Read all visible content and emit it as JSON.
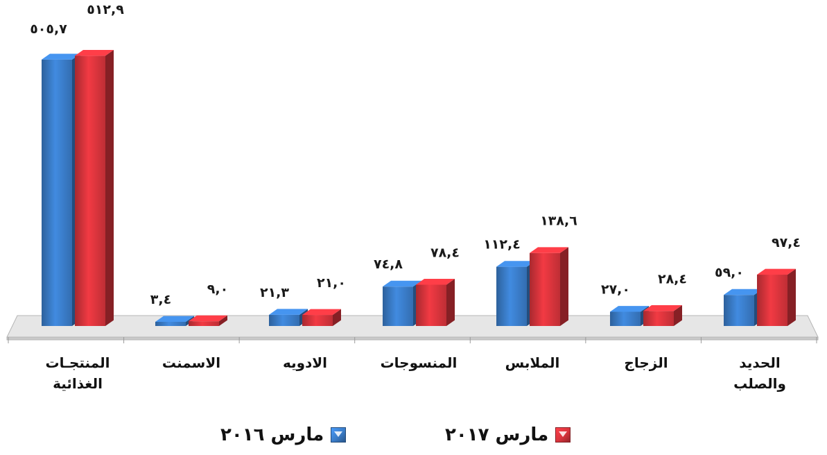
{
  "chart_data": {
    "type": "bar",
    "categories": [
      "المنتجـات الغذائية",
      "الاسمنت",
      "الادويه",
      "المنسوجات",
      "الملابس",
      "الزجاج",
      "الحديد والصلب"
    ],
    "category_lines": [
      [
        "المنتجـات",
        "الغذائية"
      ],
      [
        "الاسمنت"
      ],
      [
        "الادويه"
      ],
      [
        "المنسوجات"
      ],
      [
        "الملابس"
      ],
      [
        "الزجاج"
      ],
      [
        "الحديد",
        "والصلب"
      ]
    ],
    "series": [
      {
        "name": "مارس ٢٠١٦",
        "color": "#3a7cc8",
        "values": [
          505.7,
          3.4,
          21.3,
          74.8,
          112.4,
          27.0,
          59.0
        ],
        "labels": [
          "٥٠٥,٧",
          "٣,٤",
          "٢١,٣",
          "٧٤,٨",
          "١١٢,٤",
          "٢٧,٠",
          "٥٩,٠"
        ]
      },
      {
        "name": "مارس ٢٠١٧",
        "color": "#d8343c",
        "values": [
          512.9,
          9.0,
          21.0,
          78.4,
          138.6,
          28.4,
          97.4
        ],
        "labels": [
          "٥١٢,٩",
          "٩,٠",
          "٢١,٠",
          "٧٨,٤",
          "١٣٨,٦",
          "٢٨,٤",
          "٩٧,٤"
        ]
      }
    ],
    "ylim": [
      0,
      520
    ],
    "grid": false,
    "legend": "bottom"
  },
  "colors": {
    "blue": "#3a7cc8",
    "red": "#d8343c"
  }
}
